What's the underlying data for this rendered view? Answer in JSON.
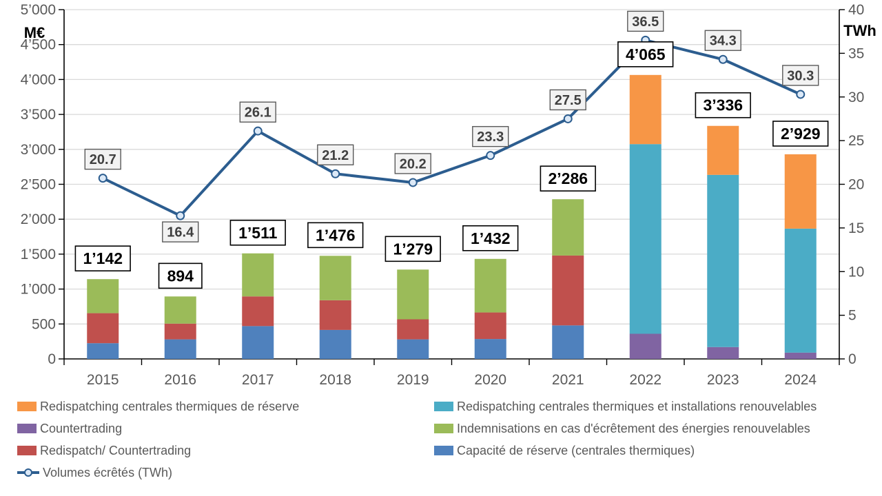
{
  "chart_data": {
    "type": "bar",
    "subtype": "stacked-bar-with-line-combo",
    "categories": [
      "2015",
      "2016",
      "2017",
      "2018",
      "2019",
      "2020",
      "2021",
      "2022",
      "2023",
      "2024"
    ],
    "series": [
      {
        "name": "Capacité de réserve (centrales thermiques)",
        "color": "#4F81BD",
        "values": [
          225,
          280,
          470,
          415,
          280,
          285,
          480,
          0,
          0,
          0
        ]
      },
      {
        "name": "Redispatch/ Countertrading",
        "color": "#C0504D",
        "values": [
          430,
          225,
          425,
          425,
          287,
          380,
          1000,
          0,
          0,
          0
        ]
      },
      {
        "name": "Countertrading",
        "color": "#8064A2",
        "values": [
          0,
          0,
          0,
          0,
          0,
          0,
          0,
          360,
          170,
          90
        ]
      },
      {
        "name": "Redispatching centrales thermiques et installations renouvelables",
        "color": "#4BACC6",
        "values": [
          0,
          0,
          0,
          0,
          0,
          0,
          0,
          2715,
          2465,
          1775
        ]
      },
      {
        "name": "Indemnisations en cas d'écrêtement des énergies renouvelables",
        "color": "#9BBB59",
        "values": [
          487,
          389,
          616,
          636,
          712,
          767,
          806,
          0,
          0,
          0
        ]
      },
      {
        "name": "Redispatching centrales thermiques de réserve",
        "color": "#F79646",
        "values": [
          0,
          0,
          0,
          0,
          0,
          0,
          0,
          990,
          701,
          1064
        ]
      }
    ],
    "bar_totals": [
      1142,
      894,
      1511,
      1476,
      1279,
      1432,
      2286,
      4065,
      3336,
      2929
    ],
    "bar_total_labels": [
      "1’142",
      "894",
      "1’511",
      "1’476",
      "1’279",
      "1’432",
      "2’286",
      "4’065",
      "3’336",
      "2’929"
    ],
    "line_series": {
      "name": "Volumes écrêtés (TWh)",
      "color": "#2C5D8F",
      "marker_fill": "#DCE9F7",
      "values": [
        20.7,
        16.4,
        26.1,
        21.2,
        20.2,
        23.3,
        27.5,
        36.5,
        34.3,
        30.3
      ],
      "labels": [
        "20.7",
        "16.4",
        "26.1",
        "21.2",
        "20.2",
        "23.3",
        "27.5",
        "36.5",
        "34.3",
        "30.3"
      ],
      "label_positions": [
        "above",
        "below",
        "above",
        "above",
        "above",
        "above",
        "above",
        "above",
        "above",
        "above"
      ]
    },
    "left_axis": {
      "label": "M€",
      "min": 0,
      "max": 5000,
      "step": 500,
      "tick_labels": [
        "0",
        "500",
        "1’000",
        "1’500",
        "2’000",
        "2’500",
        "3’000",
        "3’500",
        "4’000",
        "4’500",
        "5’000"
      ]
    },
    "right_axis": {
      "label": "TWh",
      "min": 0,
      "max": 40,
      "step": 5,
      "tick_labels": [
        "0",
        "5",
        "10",
        "15",
        "20",
        "25",
        "30",
        "35",
        "40"
      ]
    },
    "grid": "horizontal",
    "legend_position": "bottom",
    "colors": {
      "gridline": "#D9D9D9",
      "axis_line": "#000000",
      "tick_text": "#595959",
      "bar_label_bg": "#FFFFFF",
      "bar_label_border": "#000000",
      "bar_label_text": "#000000",
      "line_label_bg": "#F2F2F2",
      "line_label_border": "#595959",
      "line_label_text": "#404040"
    }
  },
  "legend": {
    "columns": [
      {
        "items": [
          {
            "label": "Redispatching centrales thermiques de réserve",
            "color": "#F79646"
          },
          {
            "label": "Countertrading",
            "color": "#8064A2"
          },
          {
            "label": "Redispatch/ Countertrading",
            "color": "#C0504D"
          },
          {
            "label": "Volumes écrêtés (TWh)",
            "color": "#2C5D8F",
            "type": "line-marker"
          }
        ]
      },
      {
        "items": [
          {
            "label": "Redispatching centrales thermiques et installations renouvelables",
            "color": "#4BACC6"
          },
          {
            "label": "Indemnisations en cas d'écrêtement des énergies renouvelables",
            "color": "#9BBB59"
          },
          {
            "label": "Capacité de réserve (centrales thermiques)",
            "color": "#4F81BD"
          }
        ]
      }
    ]
  }
}
